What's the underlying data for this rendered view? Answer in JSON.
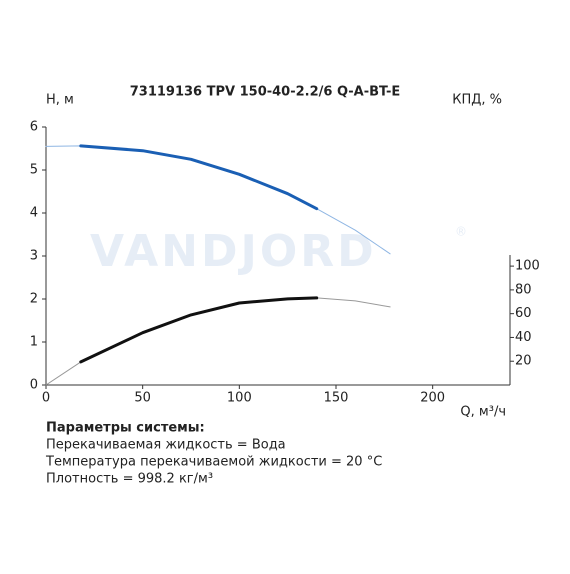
{
  "chart_data": {
    "type": "line",
    "title": "73119136 TPV 150-40-2.2/6 Q-A-BT-E",
    "y_label": "H, м",
    "y2_label": "КПД, %",
    "x_label": "Q, м³/ч",
    "watermark": "VANDJORD",
    "watermark_mark": "®",
    "xlim": [
      0,
      240
    ],
    "xticks": [
      0,
      50,
      100,
      150,
      200
    ],
    "ylim": [
      0,
      6
    ],
    "yticks": [
      0,
      1,
      2,
      3,
      4,
      5,
      6
    ],
    "y2lim": [
      0,
      217
    ],
    "y2ticks": [
      20,
      40,
      60,
      80,
      100
    ],
    "series": [
      {
        "color": "#8fb6e3",
        "width": 1,
        "x": [
          0,
          18,
          50,
          75,
          100,
          125,
          140,
          160,
          178
        ],
        "values": [
          5.55,
          5.56,
          5.45,
          5.25,
          4.9,
          4.45,
          4.1,
          3.6,
          3.05
        ]
      },
      {
        "color": "#1a5fb4",
        "width": 3,
        "x": [
          18,
          50,
          75,
          100,
          125,
          140
        ],
        "values": [
          5.56,
          5.45,
          5.25,
          4.9,
          4.45,
          4.1
        ]
      },
      {
        "color": "#999999",
        "width": 1,
        "axis": "y2",
        "x": [
          0,
          18,
          50,
          75,
          100,
          125,
          140,
          160,
          178
        ],
        "values": [
          0,
          19.4,
          44,
          59,
          69,
          72.4,
          73.3,
          70.7,
          65.7
        ]
      },
      {
        "color": "#111111",
        "width": 3,
        "axis": "y2",
        "x": [
          18,
          50,
          75,
          100,
          125,
          140
        ],
        "values": [
          19.4,
          44,
          59,
          69,
          72.4,
          73.3
        ]
      }
    ]
  },
  "params": {
    "heading": "Параметры системы:",
    "lines": [
      "Перекачиваемая жидкость = Вода",
      "Температура перекачиваемой жидкости = 20 °C",
      "Плотность = 998.2 кг/м³"
    ]
  }
}
